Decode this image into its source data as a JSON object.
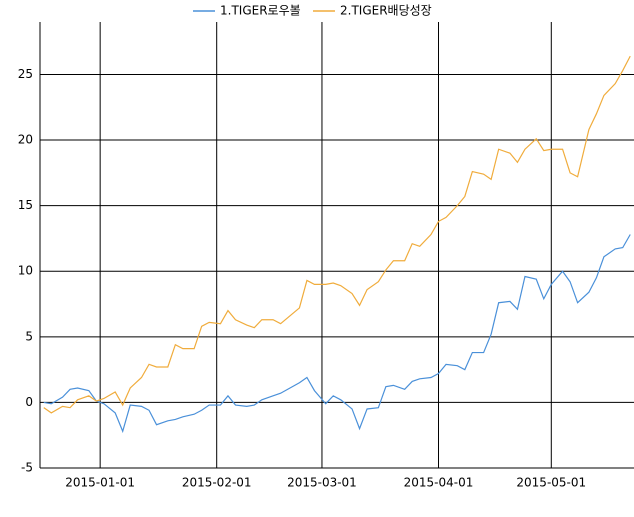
{
  "chart_data": {
    "type": "line",
    "x": [
      "2014-12-17",
      "2014-12-19",
      "2014-12-22",
      "2014-12-24",
      "2014-12-26",
      "2014-12-29",
      "2014-12-31",
      "2015-01-02",
      "2015-01-05",
      "2015-01-07",
      "2015-01-09",
      "2015-01-12",
      "2015-01-14",
      "2015-01-16",
      "2015-01-19",
      "2015-01-21",
      "2015-01-23",
      "2015-01-26",
      "2015-01-28",
      "2015-01-30",
      "2015-02-02",
      "2015-02-04",
      "2015-02-06",
      "2015-02-09",
      "2015-02-11",
      "2015-02-13",
      "2015-02-16",
      "2015-02-18",
      "2015-02-23",
      "2015-02-25",
      "2015-02-27",
      "2015-03-02",
      "2015-03-04",
      "2015-03-06",
      "2015-03-09",
      "2015-03-11",
      "2015-03-13",
      "2015-03-16",
      "2015-03-18",
      "2015-03-20",
      "2015-03-23",
      "2015-03-25",
      "2015-03-27",
      "2015-03-30",
      "2015-04-01",
      "2015-04-03",
      "2015-04-06",
      "2015-04-08",
      "2015-04-10",
      "2015-04-13",
      "2015-04-15",
      "2015-04-17",
      "2015-04-20",
      "2015-04-22",
      "2015-04-24",
      "2015-04-27",
      "2015-04-29",
      "2015-05-01",
      "2015-05-04",
      "2015-05-06",
      "2015-05-08",
      "2015-05-11",
      "2015-05-13",
      "2015-05-15",
      "2015-05-18",
      "2015-05-20",
      "2015-05-22"
    ],
    "series": [
      {
        "name": "1.TIGER로우볼",
        "color": "#4a90d9",
        "values": [
          0.0,
          -0.1,
          0.4,
          1.0,
          1.1,
          0.9,
          0.1,
          -0.1,
          -0.8,
          -2.2,
          -0.2,
          -0.3,
          -0.6,
          -1.7,
          -1.4,
          -1.3,
          -1.1,
          -0.9,
          -0.6,
          -0.2,
          -0.2,
          0.5,
          -0.2,
          -0.3,
          -0.2,
          0.2,
          0.5,
          0.7,
          1.5,
          1.9,
          0.9,
          -0.1,
          0.5,
          0.2,
          -0.5,
          -2.0,
          -0.5,
          -0.4,
          1.2,
          1.3,
          1.0,
          1.6,
          1.8,
          1.9,
          2.2,
          2.9,
          2.8,
          2.5,
          3.8,
          3.8,
          5.2,
          7.6,
          7.7,
          7.1,
          9.6,
          9.4,
          7.9,
          9.0,
          10.0,
          9.2,
          7.6,
          8.4,
          9.5,
          11.1,
          11.7,
          11.8,
          12.8
        ]
      },
      {
        "name": "2.TIGER배당성장",
        "color": "#f0ac3c",
        "values": [
          -0.4,
          -0.8,
          -0.3,
          -0.4,
          0.2,
          0.5,
          0.1,
          0.3,
          0.8,
          -0.2,
          1.1,
          1.9,
          2.9,
          2.7,
          2.7,
          4.4,
          4.1,
          4.1,
          5.8,
          6.1,
          6.0,
          7.0,
          6.3,
          5.9,
          5.7,
          6.3,
          6.3,
          6.0,
          7.2,
          9.3,
          9.0,
          9.0,
          9.1,
          8.9,
          8.3,
          7.4,
          8.6,
          9.2,
          10.1,
          10.8,
          10.8,
          12.1,
          11.9,
          12.8,
          13.8,
          14.1,
          15.0,
          15.7,
          17.6,
          17.4,
          17.0,
          19.3,
          19.0,
          18.3,
          19.3,
          20.1,
          19.2,
          19.3,
          19.3,
          17.5,
          17.2,
          20.8,
          22.0,
          23.4,
          24.3,
          25.3,
          26.4
        ]
      }
    ],
    "xlim": [
      "2014-12-16",
      "2015-05-23"
    ],
    "xticks": [
      "2015-01-01",
      "2015-02-01",
      "2015-03-01",
      "2015-04-01",
      "2015-05-01"
    ],
    "ylim": [
      -5,
      29
    ],
    "yticks": [
      -5,
      0,
      5,
      10,
      15,
      20,
      25
    ],
    "grid": true,
    "legend": "top"
  }
}
